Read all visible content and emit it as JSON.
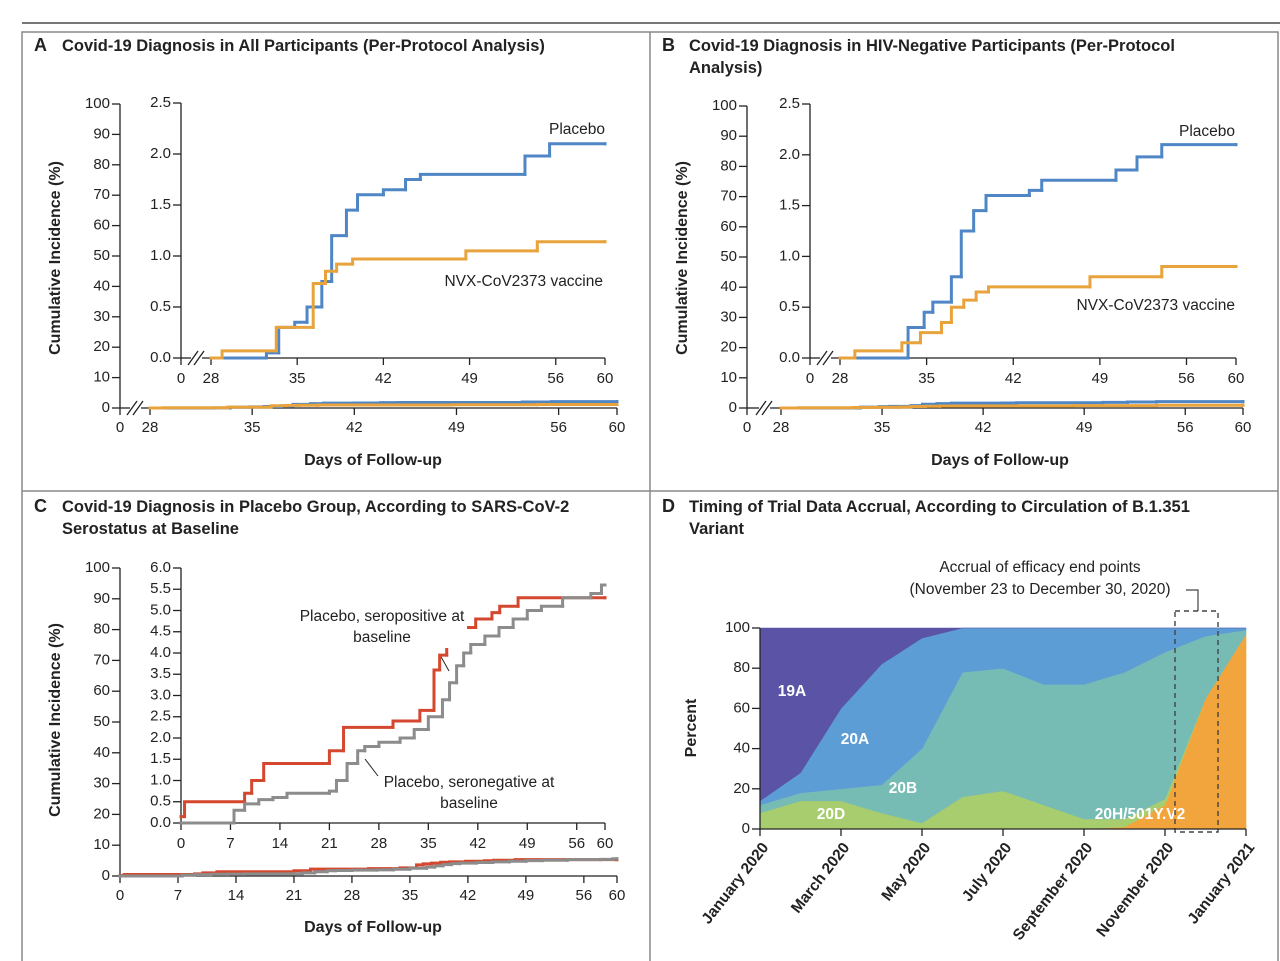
{
  "chart_data": [
    {
      "type": "step",
      "panel": "A",
      "title": "Covid-19 Diagnosis in All Participants (Per-Protocol Analysis)",
      "y_label": "Cumulative Incidence (%)",
      "x_label": "Days of Follow-up",
      "axis_break": true,
      "xlim": [
        0,
        60
      ],
      "xticks": [
        0,
        28,
        35,
        42,
        49,
        56,
        60
      ],
      "ylim": [
        0,
        100
      ],
      "yticks": [
        0,
        10,
        20,
        30,
        40,
        50,
        60,
        70,
        80,
        90,
        100
      ],
      "inset": {
        "xlim": [
          0,
          60
        ],
        "xticks": [
          0,
          28,
          35,
          42,
          49,
          56,
          60
        ],
        "ylim": [
          0,
          2.5
        ],
        "yticks": [
          {
            "value": 0,
            "label": "0.0"
          },
          0.5,
          {
            "value": 1,
            "label": "1.0"
          },
          1.5,
          {
            "value": 2,
            "label": "2.0"
          },
          2.5
        ]
      },
      "series": [
        {
          "name": "Placebo",
          "color": "#4f86c6",
          "x": [
            28,
            32.5,
            33.5,
            34.8,
            35.8,
            37,
            37.8,
            39,
            39.9,
            42,
            43.8,
            45,
            53.5,
            55.5,
            60
          ],
          "values": [
            0,
            0.05,
            0.3,
            0.35,
            0.5,
            0.75,
            1.2,
            1.45,
            1.6,
            1.65,
            1.75,
            1.8,
            1.98,
            2.1,
            2.1
          ]
        },
        {
          "name": "NVX-CoV2373 vaccine",
          "color": "#e8a33d",
          "x": [
            28,
            28.9,
            33.3,
            36.3,
            37.3,
            38.2,
            39.5,
            48.7,
            54.5,
            60
          ],
          "values": [
            0,
            0.07,
            0.3,
            0.73,
            0.85,
            0.92,
            0.97,
            1.05,
            1.14,
            1.14
          ]
        }
      ]
    },
    {
      "type": "step",
      "panel": "B",
      "title": "Covid-19 Diagnosis in HIV-Negative Participants (Per-Protocol Analysis)",
      "y_label": "Cumulative Incidence (%)",
      "x_label": "Days of Follow-up",
      "axis_break": true,
      "xlim": [
        0,
        60
      ],
      "xticks": [
        0,
        28,
        35,
        42,
        49,
        56,
        60
      ],
      "ylim": [
        0,
        100
      ],
      "yticks": [
        0,
        10,
        20,
        30,
        40,
        50,
        60,
        70,
        80,
        90,
        100
      ],
      "inset": {
        "xlim": [
          0,
          60
        ],
        "xticks": [
          0,
          28,
          35,
          42,
          49,
          56,
          60
        ],
        "ylim": [
          0,
          2.5
        ],
        "yticks": [
          {
            "value": 0,
            "label": "0.0"
          },
          0.5,
          {
            "value": 1,
            "label": "1.0"
          },
          1.5,
          {
            "value": 2,
            "label": "2.0"
          },
          2.5
        ]
      },
      "series": [
        {
          "name": "Placebo",
          "color": "#4f86c6",
          "x": [
            28,
            33.5,
            34.8,
            35.5,
            37,
            37.8,
            38.8,
            39.8,
            43.3,
            44.3,
            50.3,
            52,
            54,
            60
          ],
          "values": [
            0,
            0.3,
            0.45,
            0.55,
            0.8,
            1.25,
            1.45,
            1.6,
            1.65,
            1.75,
            1.85,
            1.98,
            2.1,
            2.1
          ]
        },
        {
          "name": "NVX-CoV2373 vaccine",
          "color": "#e8a33d",
          "x": [
            28,
            29.2,
            33,
            34.5,
            36.2,
            37,
            38,
            39,
            40,
            48.2,
            54,
            60
          ],
          "values": [
            0,
            0.07,
            0.15,
            0.25,
            0.35,
            0.5,
            0.57,
            0.65,
            0.7,
            0.8,
            0.9,
            0.9
          ]
        }
      ]
    },
    {
      "type": "step",
      "panel": "C",
      "title": "Covid-19 Diagnosis in Placebo Group, According to SARS-CoV-2 Serostatus at Baseline",
      "y_label": "Cumulative Incidence (%)",
      "x_label": "Days of Follow-up",
      "xlim": [
        0,
        60
      ],
      "xticks": [
        0,
        7,
        14,
        21,
        28,
        35,
        42,
        49,
        56,
        60
      ],
      "ylim": [
        0,
        100
      ],
      "yticks": [
        0,
        10,
        20,
        30,
        40,
        50,
        60,
        70,
        80,
        90,
        100
      ],
      "inset": {
        "xlim": [
          0,
          60
        ],
        "xticks": [
          0,
          7,
          14,
          21,
          28,
          35,
          42,
          49,
          56,
          60
        ],
        "ylim": [
          0,
          6
        ],
        "yticks": [
          {
            "value": 0,
            "label": "0.0"
          },
          0.5,
          {
            "value": 1,
            "label": "1.0"
          },
          1.5,
          {
            "value": 2,
            "label": "2.0"
          },
          2.5,
          {
            "value": 3,
            "label": "3.0"
          },
          3.5,
          {
            "value": 4,
            "label": "4.0"
          },
          4.5,
          {
            "value": 5,
            "label": "5.0"
          },
          5.5,
          {
            "value": 6,
            "label": "6.0"
          }
        ]
      },
      "series": [
        {
          "name": "Placebo, seropositive at baseline",
          "color": "#d4482f",
          "x": [
            0,
            0.5,
            9,
            10,
            11.7,
            21,
            23,
            30,
            33.8,
            35.8,
            36.6,
            37.6,
            38.7,
            39.8,
            41.7,
            44,
            45.1,
            47.7,
            60
          ],
          "values": [
            0.15,
            0.5,
            0.7,
            1.0,
            1.4,
            1.7,
            2.25,
            2.4,
            2.65,
            3.6,
            3.95,
            4.2,
            4.45,
            4.6,
            4.8,
            4.95,
            5.1,
            5.3,
            5.3
          ]
        },
        {
          "name": "Placebo, seronegative at baseline",
          "color": "#8c8c8c",
          "x": [
            0,
            7.5,
            9,
            11,
            13,
            15,
            21,
            22,
            23.5,
            25,
            26,
            28,
            31,
            33,
            35,
            37,
            38,
            39,
            40,
            41,
            43,
            45,
            47,
            49,
            51,
            54,
            58,
            59.5,
            60
          ],
          "values": [
            0,
            0.3,
            0.45,
            0.55,
            0.6,
            0.7,
            0.75,
            1.0,
            1.4,
            1.7,
            1.8,
            1.9,
            2.0,
            2.2,
            2.5,
            2.9,
            3.3,
            3.7,
            4.0,
            4.2,
            4.4,
            4.6,
            4.8,
            5.0,
            5.1,
            5.3,
            5.4,
            5.6,
            5.6
          ]
        }
      ]
    },
    {
      "type": "stacked_area",
      "panel": "D",
      "title": "Timing of Trial Data Accrual, According to Circulation of B.1.351 Variant",
      "y_label": "Percent",
      "annotation": [
        "Accrual of efficacy end points",
        "(November 23 to December 30, 2020)"
      ],
      "categories": [
        "January 2020",
        null,
        "March 2020",
        null,
        "May 2020",
        null,
        "July 2020",
        null,
        "September 2020",
        null,
        "November 2020",
        null,
        "January 2021"
      ],
      "ylim": [
        0,
        100
      ],
      "yticks": [
        0,
        20,
        40,
        60,
        80,
        100
      ],
      "series": [
        {
          "name": "20H/501Y.V2",
          "color": "#f2a53c",
          "values": [
            0,
            0,
            0,
            0,
            0,
            0,
            0,
            0,
            0,
            1,
            12,
            65,
            97
          ]
        },
        {
          "name": "20D",
          "color": "#a8cd6e",
          "values": [
            8,
            14,
            14,
            8,
            3,
            16,
            19,
            12,
            5,
            4,
            3,
            0,
            0
          ]
        },
        {
          "name": "20B",
          "color": "#77bcb4",
          "values": [
            4,
            4,
            6,
            14,
            37,
            62,
            61,
            60,
            67,
            73,
            73,
            31,
            2
          ]
        },
        {
          "name": "20A",
          "color": "#5c9dd5",
          "values": [
            2,
            10,
            40,
            60,
            55,
            22,
            20,
            28,
            28,
            22,
            12,
            4,
            1
          ]
        },
        {
          "name": "19A",
          "color": "#5b54a6",
          "values": [
            86,
            72,
            40,
            18,
            5,
            0,
            0,
            0,
            0,
            0,
            0,
            0,
            0
          ]
        }
      ]
    }
  ]
}
